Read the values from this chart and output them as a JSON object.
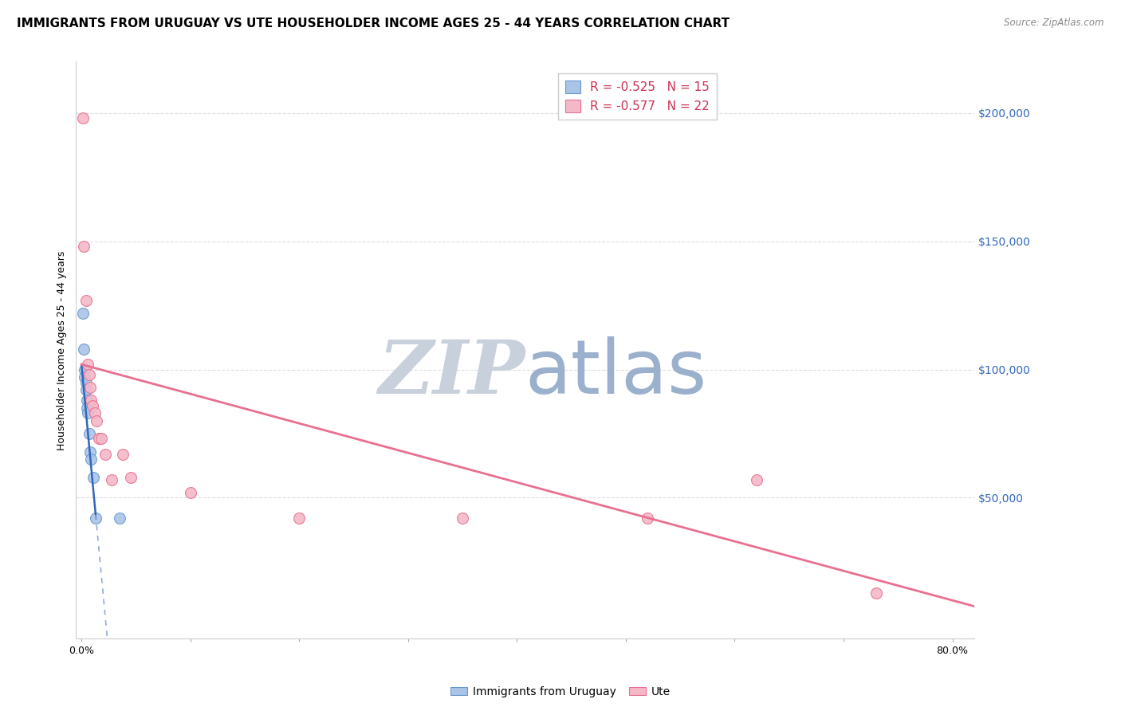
{
  "title": "IMMIGRANTS FROM URUGUAY VS UTE HOUSEHOLDER INCOME AGES 25 - 44 YEARS CORRELATION CHART",
  "source": "Source: ZipAtlas.com",
  "ylabel": "Householder Income Ages 25 - 44 years",
  "xticks": [
    0.0,
    0.1,
    0.2,
    0.3,
    0.4,
    0.5,
    0.6,
    0.7,
    0.8
  ],
  "xticklabels": [
    "0.0%",
    "",
    "",
    "",
    "",
    "",
    "",
    "",
    "80.0%"
  ],
  "ylim": [
    -5000,
    220000
  ],
  "xlim": [
    -0.005,
    0.82
  ],
  "yticks_right": [
    50000,
    100000,
    150000,
    200000
  ],
  "ytick_labels_right": [
    "$50,000",
    "$100,000",
    "$150,000",
    "$200,000"
  ],
  "grid_color": "#dddddd",
  "background_color": "#ffffff",
  "blue_scatter": {
    "x": [
      0.001,
      0.002,
      0.003,
      0.003,
      0.004,
      0.004,
      0.005,
      0.005,
      0.006,
      0.007,
      0.008,
      0.009,
      0.011,
      0.013,
      0.035
    ],
    "y": [
      122000,
      108000,
      100000,
      97000,
      95000,
      92000,
      88000,
      85000,
      83000,
      75000,
      68000,
      65000,
      58000,
      42000,
      42000
    ],
    "color": "#aac4e8",
    "edge_color": "#6699cc",
    "size": 100,
    "label": "Immigrants from Uruguay",
    "R": "-0.525",
    "N": "15"
  },
  "pink_scatter": {
    "x": [
      0.001,
      0.002,
      0.004,
      0.006,
      0.007,
      0.008,
      0.009,
      0.01,
      0.012,
      0.014,
      0.016,
      0.018,
      0.022,
      0.028,
      0.038,
      0.045,
      0.1,
      0.2,
      0.35,
      0.52,
      0.62,
      0.73
    ],
    "y": [
      198000,
      148000,
      127000,
      102000,
      98000,
      93000,
      88000,
      86000,
      83000,
      80000,
      73000,
      73000,
      67000,
      57000,
      67000,
      58000,
      52000,
      42000,
      42000,
      42000,
      57000,
      13000
    ],
    "color": "#f4b8c8",
    "edge_color": "#e87090",
    "size": 100,
    "label": "Ute",
    "R": "-0.577",
    "N": "22"
  },
  "blue_line": {
    "x_solid_start": 0.0,
    "x_solid_end": 0.013,
    "x_dash_start": 0.013,
    "x_dash_end": 0.22,
    "color": "#3366bb",
    "slope": -4500000,
    "intercept": 102000
  },
  "pink_line": {
    "x_start": 0.0,
    "x_end": 0.82,
    "color": "#e87090",
    "slope": -115000,
    "intercept": 102000
  },
  "watermark_zip": "ZIP",
  "watermark_atlas": "atlas",
  "watermark_color_zip": "#c8d0dc",
  "watermark_color_atlas": "#9ab0cc",
  "title_fontsize": 11,
  "axis_label_fontsize": 9,
  "tick_fontsize": 9,
  "legend_fontsize": 10
}
